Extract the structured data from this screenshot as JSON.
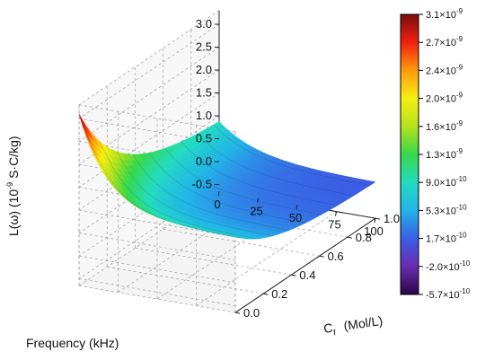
{
  "chart_data": {
    "type": "surface3d",
    "x_axis": {
      "label": "Frequency (kHz)",
      "range": [
        0,
        100
      ],
      "ticks": [
        "0",
        "25",
        "50",
        "75",
        "100"
      ]
    },
    "y_axis": {
      "label_main": "C",
      "label_sub": "f",
      "label_unit": "(Mol/L)",
      "range": [
        1.0,
        0.0
      ],
      "ticks": [
        "1.0",
        "0.8",
        "0.6",
        "0.4",
        "0.2",
        "0.0"
      ]
    },
    "z_axis": {
      "label_prefix": "L(ω) (10",
      "label_exp": "-9",
      "label_suffix": " S·C/kg)",
      "range": [
        -0.65,
        3.3
      ],
      "ticks": [
        "-0.5",
        "0.0",
        "0.5",
        "1.0",
        "1.5",
        "2.0",
        "2.5",
        "3.0"
      ]
    },
    "surface_samples": [
      {
        "frequency_khz": 0,
        "cf_mol_l": 0.0,
        "value": 3.1
      },
      {
        "frequency_khz": 0,
        "cf_mol_l": 0.2,
        "value": 1.5
      },
      {
        "frequency_khz": 0,
        "cf_mol_l": 0.4,
        "value": 0.6
      },
      {
        "frequency_khz": 0,
        "cf_mol_l": 1.0,
        "value": -0.57
      },
      {
        "frequency_khz": 100,
        "cf_mol_l": 0.0,
        "value": 1.0
      },
      {
        "frequency_khz": 100,
        "cf_mol_l": 1.0,
        "value": 0.1
      }
    ],
    "colorbar": {
      "labels": [
        {
          "m": "3.1",
          "e": "-9"
        },
        {
          "m": "2.7",
          "e": "-9"
        },
        {
          "m": "2.4",
          "e": "-9"
        },
        {
          "m": "2.0",
          "e": "-9"
        },
        {
          "m": "1.6",
          "e": "-9"
        },
        {
          "m": "1.3",
          "e": "-9"
        },
        {
          "m": "9.0",
          "e": "-10"
        },
        {
          "m": "5.3",
          "e": "-10"
        },
        {
          "m": "1.7",
          "e": "-10"
        },
        {
          "m": "-2.0",
          "e": "-10"
        },
        {
          "m": "-5.7",
          "e": "-10"
        }
      ],
      "min": -5.7e-10,
      "max": 3.1e-09,
      "colors": [
        "#2a0848",
        "#6a2bb0",
        "#3a5fe6",
        "#22b3e8",
        "#23dcc0",
        "#35d84a",
        "#b5e21c",
        "#f5ef12",
        "#ff9a0c",
        "#f2200e",
        "#7a0d0d"
      ]
    },
    "grid": true,
    "legend_position": "right"
  }
}
